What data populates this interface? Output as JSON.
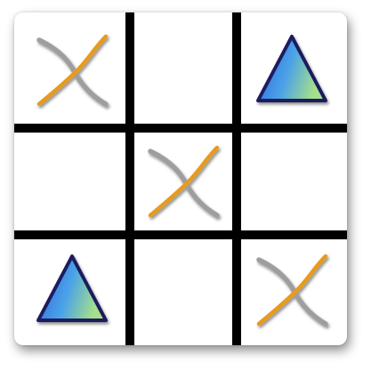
{
  "board": {
    "rows": 3,
    "cols": 3,
    "cells": [
      [
        "cross",
        "",
        "triangle"
      ],
      [
        "",
        "cross",
        ""
      ],
      [
        "triangle",
        "",
        "cross"
      ]
    ]
  },
  "pieces": {
    "cross": {
      "icon": "cross-curves-icon",
      "stroke_a": "#9e9e9e",
      "stroke_b": "#e89a1e"
    },
    "triangle": {
      "icon": "triangle-icon",
      "gradient_from": "#2f5fe0",
      "gradient_mid": "#4aa2e8",
      "gradient_to": "#a6e08a",
      "outline": "#1e1f5e"
    }
  },
  "grid_line_color": "#000000"
}
